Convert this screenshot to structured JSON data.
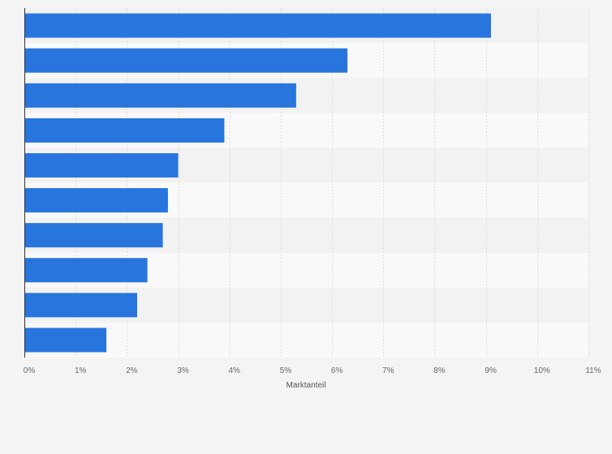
{
  "chart_data": {
    "type": "bar",
    "orientation": "horizontal",
    "categories": [
      "",
      "",
      "",
      "",
      "",
      "",
      "",
      "",
      "",
      ""
    ],
    "values": [
      9.1,
      6.3,
      5.3,
      3.9,
      3.0,
      2.8,
      2.7,
      2.4,
      2.2,
      1.6
    ],
    "title": "",
    "xlabel": "Marktanteil",
    "ylabel": "",
    "xlim": [
      0,
      11
    ],
    "x_ticks": [
      {
        "value": 0,
        "label": "0%"
      },
      {
        "value": 1,
        "label": "1%"
      },
      {
        "value": 2,
        "label": "2%"
      },
      {
        "value": 3,
        "label": "3%"
      },
      {
        "value": 4,
        "label": "4%"
      },
      {
        "value": 5,
        "label": "5%"
      },
      {
        "value": 6,
        "label": "6%"
      },
      {
        "value": 7,
        "label": "7%"
      },
      {
        "value": 8,
        "label": "8%"
      },
      {
        "value": 9,
        "label": "9%"
      },
      {
        "value": 10,
        "label": "10%"
      },
      {
        "value": 11,
        "label": "11%"
      }
    ],
    "grid": true,
    "legend": "none",
    "colors": {
      "bar": "#2876dd",
      "band_light": "#f9f9f9",
      "band_dark": "#f2f2f2",
      "gridline": "#dddddd",
      "axis": "#333333",
      "background": "#f4f4f4"
    }
  }
}
